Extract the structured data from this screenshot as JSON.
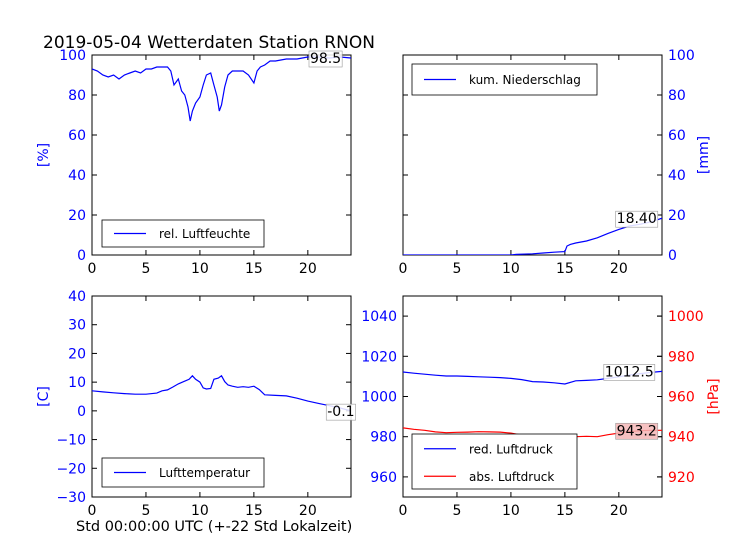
{
  "figure": {
    "title": "2019-05-04 Wetterdaten Station RNON",
    "xlabel": "Std 00:00:00 UTC (+-22 Std Lokalzeit)"
  },
  "colors": {
    "primary": "#0000ff",
    "secondary": "#ff0000",
    "axes": "#000000"
  },
  "chart_data": [
    {
      "id": "humidity",
      "type": "line",
      "xlim": [
        0,
        24
      ],
      "ylim": [
        0,
        100
      ],
      "xticks": [
        "0",
        "5",
        "10",
        "15",
        "20"
      ],
      "yticks": [
        "0",
        "20",
        "40",
        "60",
        "80",
        "100"
      ],
      "yaxis_side": "left",
      "ylabel": "[%]",
      "legend": {
        "position": "lower-left"
      },
      "series": [
        {
          "name": "rel. Luftfeuchte",
          "color": "#0000ff",
          "x": [
            0,
            0.5,
            1,
            1.5,
            2,
            2.5,
            3,
            3.5,
            4,
            4.5,
            5,
            5.5,
            6,
            6.5,
            7,
            7.3,
            7.6,
            8,
            8.3,
            8.6,
            8.9,
            9.1,
            9.3,
            9.6,
            10,
            10.3,
            10.6,
            11,
            11.3,
            11.6,
            11.8,
            12,
            12.3,
            12.6,
            13,
            13.5,
            14,
            14.5,
            15,
            15.3,
            15.6,
            16,
            16.5,
            17,
            18,
            19,
            20,
            21,
            22,
            23,
            24
          ],
          "y": [
            93,
            92,
            90,
            89,
            90,
            88,
            90,
            91,
            92,
            91,
            93,
            93,
            94,
            94,
            94,
            92,
            85,
            88,
            82,
            80,
            74,
            67,
            72,
            76,
            79,
            85,
            90,
            91,
            85,
            79,
            72,
            75,
            84,
            90,
            92,
            92,
            92,
            90,
            86,
            92,
            94,
            95,
            97,
            97,
            98,
            98,
            99,
            99,
            98.5,
            99,
            98.5
          ]
        }
      ],
      "annotations": [
        {
          "text": "98.5",
          "x": 20.2,
          "y": 98.5
        }
      ]
    },
    {
      "id": "precipitation",
      "type": "line",
      "xlim": [
        0,
        24
      ],
      "ylim": [
        0,
        100
      ],
      "xticks": [
        "0",
        "5",
        "10",
        "15",
        "20"
      ],
      "yticks": [
        "0",
        "20",
        "40",
        "60",
        "80",
        "100"
      ],
      "yaxis_side": "right",
      "ylabel": "[mm]",
      "legend": {
        "position": "upper-left"
      },
      "series": [
        {
          "name": "kum. Niederschlag",
          "color": "#0000ff",
          "x": [
            0,
            5,
            10,
            10.5,
            12,
            13,
            14,
            15,
            15.2,
            15.5,
            16,
            17,
            18,
            19,
            20,
            21,
            22,
            23,
            24
          ],
          "y": [
            0,
            0,
            0,
            0.3,
            0.6,
            1.0,
            1.4,
            1.7,
            4.5,
            5.3,
            6.0,
            7.0,
            8.6,
            10.8,
            12.8,
            14.5,
            15.4,
            16.6,
            18.4
          ]
        }
      ],
      "annotations": [
        {
          "text": "18.40",
          "x": 19.8,
          "y": 18.4
        }
      ]
    },
    {
      "id": "temperature",
      "type": "line",
      "xlim": [
        0,
        24
      ],
      "ylim": [
        -30,
        40
      ],
      "xticks": [
        "0",
        "5",
        "10",
        "15",
        "20"
      ],
      "yticks": [
        "−30",
        "−20",
        "−10",
        "0",
        "10",
        "20",
        "30",
        "40"
      ],
      "yaxis_side": "left",
      "ylabel": "[C]",
      "legend": {
        "position": "lower-left"
      },
      "series": [
        {
          "name": "Lufttemperatur",
          "color": "#0000ff",
          "x": [
            0,
            1,
            2,
            3,
            4,
            5,
            6,
            6.5,
            7,
            7.5,
            8,
            8.5,
            9,
            9.3,
            9.6,
            10,
            10.3,
            10.6,
            11,
            11.3,
            11.7,
            12,
            12.3,
            12.6,
            13,
            13.5,
            14,
            14.5,
            15,
            15.5,
            16,
            17,
            18,
            19,
            20,
            21,
            22,
            23,
            24
          ],
          "y": [
            7,
            6.6,
            6.3,
            6,
            5.8,
            5.8,
            6.2,
            7,
            7.3,
            8.3,
            9.4,
            10.2,
            11,
            12.2,
            11,
            10,
            8,
            7.6,
            7.8,
            11,
            11.4,
            12.2,
            10.2,
            9,
            8.6,
            8.2,
            8.4,
            8.2,
            8.6,
            7.4,
            5.6,
            5.4,
            5.2,
            4.4,
            3.4,
            2.6,
            1.8,
            1,
            0
          ]
        }
      ],
      "annotations": [
        {
          "text": "-0.1",
          "x": 21.8,
          "y": -0.1
        }
      ]
    },
    {
      "id": "pressure",
      "type": "line",
      "xlim": [
        0,
        24
      ],
      "ylim": [
        950,
        1050
      ],
      "ylim_right": [
        910,
        1010
      ],
      "xticks": [
        "0",
        "5",
        "10",
        "15",
        "20"
      ],
      "yticks": [
        "960",
        "980",
        "1000",
        "1020",
        "1040"
      ],
      "yticks_right": [
        "920",
        "940",
        "960",
        "980",
        "1000"
      ],
      "ylabel_right": "[hPa]",
      "legend": {
        "position": "lower-left"
      },
      "series": [
        {
          "name": "red. Luftdruck",
          "color": "#0000ff",
          "axis": "left",
          "x": [
            0,
            1,
            2,
            3,
            4,
            5,
            6,
            7,
            8,
            9,
            10,
            11,
            12,
            13,
            14,
            15,
            16,
            17,
            18,
            19,
            20,
            21,
            22,
            23,
            24
          ],
          "y": [
            1012.2,
            1011.6,
            1011.1,
            1010.6,
            1010.2,
            1010.2,
            1010.0,
            1009.8,
            1009.6,
            1009.4,
            1009.0,
            1008.4,
            1007.4,
            1007.2,
            1006.8,
            1006.2,
            1007.8,
            1008.0,
            1008.3,
            1009.0,
            1009.8,
            1010.7,
            1011.4,
            1012.0,
            1012.5
          ]
        },
        {
          "name": "abs. Luftdruck",
          "color": "#ff0000",
          "axis": "right",
          "x": [
            0,
            1,
            2,
            3,
            4,
            5,
            6,
            7,
            8,
            9,
            10,
            11,
            12,
            13,
            14,
            15,
            15.5,
            16,
            17,
            18,
            19,
            20,
            21,
            22,
            23,
            24
          ],
          "y": [
            944.4,
            943.7,
            943.2,
            942.4,
            942.0,
            942.2,
            942.3,
            942.5,
            942.4,
            942.3,
            941.8,
            940.8,
            940.0,
            939.6,
            939.2,
            939.0,
            940.4,
            940.0,
            940.2,
            940.0,
            941.0,
            941.8,
            942.5,
            943.0,
            943.2,
            943.2
          ]
        }
      ],
      "annotations": [
        {
          "text": "1012.5",
          "x": 18.7,
          "y": 1012.5,
          "axis": "left",
          "box": "#ffffff"
        },
        {
          "text": "943.2",
          "x": 19.8,
          "y": 943.2,
          "axis": "right",
          "box": "#f4b6b6"
        }
      ]
    }
  ]
}
